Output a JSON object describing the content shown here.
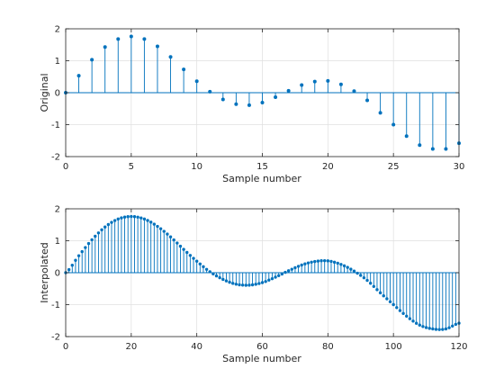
{
  "chart_data": [
    {
      "type": "stem",
      "xlabel": "Sample number",
      "ylabel": "Original",
      "xlim": [
        0,
        30
      ],
      "ylim": [
        -2,
        2
      ],
      "xticks": [
        0,
        5,
        10,
        15,
        20,
        25,
        30
      ],
      "yticks": [
        -2,
        -1,
        0,
        1,
        2
      ],
      "grid": true,
      "color": "#0072BD",
      "x": [
        0,
        1,
        2,
        3,
        4,
        5,
        6,
        7,
        8,
        9,
        10,
        11,
        12,
        13,
        14,
        15,
        16,
        17,
        18,
        19,
        20,
        21,
        22,
        23,
        24,
        25,
        26,
        27,
        28,
        29,
        30
      ],
      "values": [
        0,
        0.53,
        1.03,
        1.43,
        1.68,
        1.76,
        1.68,
        1.45,
        1.12,
        0.73,
        0.36,
        0.03,
        -0.21,
        -0.36,
        -0.39,
        -0.31,
        -0.14,
        0.06,
        0.24,
        0.35,
        0.37,
        0.26,
        0.05,
        -0.24,
        -0.63,
        -1.0,
        -1.36,
        -1.64,
        -1.76,
        -1.76,
        -1.58
      ]
    },
    {
      "type": "stem",
      "xlabel": "Sample number",
      "ylabel": "Interpolated",
      "xlim": [
        0,
        120
      ],
      "ylim": [
        -2,
        2
      ],
      "xticks": [
        0,
        20,
        40,
        60,
        80,
        100,
        120
      ],
      "yticks": [
        -2,
        -1,
        0,
        1,
        2
      ],
      "grid": true,
      "color": "#0072BD",
      "x_step": 1,
      "upsample_factor": 4,
      "values": []
    }
  ]
}
